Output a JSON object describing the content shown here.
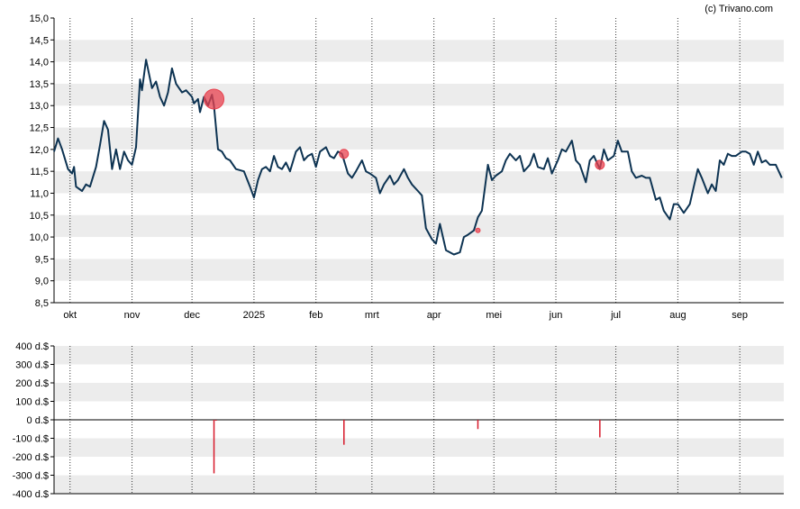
{
  "credit": "(c) Trivano.com",
  "colors": {
    "line": "#0d3352",
    "band": "#ececec",
    "marker": "#e8424f",
    "bar": "#d7192a",
    "axis": "#000000",
    "grid_dotted": "#333333"
  },
  "chart_data": [
    {
      "type": "line",
      "name": "price",
      "ylim": [
        8.5,
        15.0
      ],
      "y_ticks": [
        "15,0",
        "14,5",
        "14,0",
        "13,5",
        "13,0",
        "12,5",
        "12,0",
        "11,5",
        "11,0",
        "10,5",
        "10,0",
        "9,5",
        "9,0",
        "8,5"
      ],
      "y_tick_values": [
        15.0,
        14.5,
        14.0,
        13.5,
        13.0,
        12.5,
        12.0,
        11.5,
        11.0,
        10.5,
        10.0,
        9.5,
        9.0,
        8.5
      ],
      "x_start": "2024-09-23",
      "x_end": "2025-09-23",
      "x_tick_labels": [
        "okt",
        "nov",
        "dec",
        "2025",
        "feb",
        "mrt",
        "apr",
        "mei",
        "jun",
        "jul",
        "aug",
        "sep"
      ],
      "x_tick_dates": [
        "2024-10-01",
        "2024-11-01",
        "2024-12-01",
        "2025-01-01",
        "2025-02-01",
        "2025-03-01",
        "2025-04-01",
        "2025-05-01",
        "2025-06-01",
        "2025-07-01",
        "2025-08-01",
        "2025-09-01"
      ],
      "grid": "horizontal bands and dotted vertical lines at month ticks",
      "series": [
        {
          "points": [
            [
              "2024-09-23",
              11.95
            ],
            [
              "2024-09-25",
              12.25
            ],
            [
              "2024-09-27",
              12.0
            ],
            [
              "2024-09-30",
              11.55
            ],
            [
              "2024-10-02",
              11.45
            ],
            [
              "2024-10-03",
              11.6
            ],
            [
              "2024-10-04",
              11.15
            ],
            [
              "2024-10-07",
              11.05
            ],
            [
              "2024-10-09",
              11.2
            ],
            [
              "2024-10-11",
              11.15
            ],
            [
              "2024-10-14",
              11.6
            ],
            [
              "2024-10-16",
              12.1
            ],
            [
              "2024-10-18",
              12.65
            ],
            [
              "2024-10-20",
              12.45
            ],
            [
              "2024-10-22",
              11.55
            ],
            [
              "2024-10-24",
              12.0
            ],
            [
              "2024-10-26",
              11.55
            ],
            [
              "2024-10-28",
              11.95
            ],
            [
              "2024-10-30",
              11.75
            ],
            [
              "2024-11-01",
              11.65
            ],
            [
              "2024-11-03",
              12.05
            ],
            [
              "2024-11-05",
              13.6
            ],
            [
              "2024-11-06",
              13.35
            ],
            [
              "2024-11-08",
              14.05
            ],
            [
              "2024-11-11",
              13.4
            ],
            [
              "2024-11-13",
              13.55
            ],
            [
              "2024-11-15",
              13.2
            ],
            [
              "2024-11-17",
              13.0
            ],
            [
              "2024-11-19",
              13.3
            ],
            [
              "2024-11-21",
              13.85
            ],
            [
              "2024-11-23",
              13.5
            ],
            [
              "2024-11-26",
              13.3
            ],
            [
              "2024-11-28",
              13.35
            ],
            [
              "2024-12-01",
              13.2
            ],
            [
              "2024-12-02",
              13.05
            ],
            [
              "2024-12-04",
              13.15
            ],
            [
              "2024-12-05",
              12.85
            ],
            [
              "2024-12-07",
              13.2
            ],
            [
              "2024-12-09",
              13.0
            ],
            [
              "2024-12-11",
              13.25
            ],
            [
              "2024-12-12",
              13.0
            ],
            [
              "2024-12-14",
              12.0
            ],
            [
              "2024-12-16",
              11.95
            ],
            [
              "2024-12-18",
              11.8
            ],
            [
              "2024-12-20",
              11.75
            ],
            [
              "2024-12-23",
              11.55
            ],
            [
              "2024-12-27",
              11.5
            ],
            [
              "2024-12-30",
              11.15
            ],
            [
              "2025-01-01",
              10.9
            ],
            [
              "2025-01-03",
              11.3
            ],
            [
              "2025-01-05",
              11.55
            ],
            [
              "2025-01-07",
              11.6
            ],
            [
              "2025-01-09",
              11.5
            ],
            [
              "2025-01-11",
              11.85
            ],
            [
              "2025-01-13",
              11.6
            ],
            [
              "2025-01-15",
              11.55
            ],
            [
              "2025-01-17",
              11.7
            ],
            [
              "2025-01-19",
              11.5
            ],
            [
              "2025-01-22",
              11.95
            ],
            [
              "2025-01-24",
              12.05
            ],
            [
              "2025-01-26",
              11.75
            ],
            [
              "2025-01-28",
              11.85
            ],
            [
              "2025-01-30",
              11.9
            ],
            [
              "2025-02-01",
              11.6
            ],
            [
              "2025-02-03",
              11.95
            ],
            [
              "2025-02-06",
              12.05
            ],
            [
              "2025-02-08",
              11.85
            ],
            [
              "2025-02-10",
              11.8
            ],
            [
              "2025-02-12",
              11.95
            ],
            [
              "2025-02-14",
              11.9
            ],
            [
              "2025-02-17",
              11.45
            ],
            [
              "2025-02-19",
              11.35
            ],
            [
              "2025-02-21",
              11.5
            ],
            [
              "2025-02-24",
              11.75
            ],
            [
              "2025-02-26",
              11.5
            ],
            [
              "2025-02-28",
              11.45
            ],
            [
              "2025-03-03",
              11.35
            ],
            [
              "2025-03-05",
              11.0
            ],
            [
              "2025-03-07",
              11.2
            ],
            [
              "2025-03-10",
              11.4
            ],
            [
              "2025-03-12",
              11.2
            ],
            [
              "2025-03-14",
              11.3
            ],
            [
              "2025-03-17",
              11.55
            ],
            [
              "2025-03-19",
              11.35
            ],
            [
              "2025-03-21",
              11.2
            ],
            [
              "2025-03-24",
              11.05
            ],
            [
              "2025-03-26",
              10.95
            ],
            [
              "2025-03-28",
              10.2
            ],
            [
              "2025-03-31",
              9.95
            ],
            [
              "2025-04-02",
              9.85
            ],
            [
              "2025-04-04",
              10.3
            ],
            [
              "2025-04-07",
              9.7
            ],
            [
              "2025-04-09",
              9.65
            ],
            [
              "2025-04-11",
              9.6
            ],
            [
              "2025-04-14",
              9.65
            ],
            [
              "2025-04-16",
              10.0
            ],
            [
              "2025-04-18",
              10.05
            ],
            [
              "2025-04-21",
              10.15
            ],
            [
              "2025-04-23",
              10.45
            ],
            [
              "2025-04-25",
              10.6
            ],
            [
              "2025-04-28",
              11.65
            ],
            [
              "2025-04-30",
              11.3
            ],
            [
              "2025-05-02",
              11.4
            ],
            [
              "2025-05-05",
              11.5
            ],
            [
              "2025-05-07",
              11.75
            ],
            [
              "2025-05-09",
              11.9
            ],
            [
              "2025-05-12",
              11.75
            ],
            [
              "2025-05-14",
              11.85
            ],
            [
              "2025-05-16",
              11.5
            ],
            [
              "2025-05-19",
              11.65
            ],
            [
              "2025-05-21",
              11.9
            ],
            [
              "2025-05-23",
              11.6
            ],
            [
              "2025-05-26",
              11.55
            ],
            [
              "2025-05-28",
              11.8
            ],
            [
              "2025-05-30",
              11.45
            ],
            [
              "2025-06-02",
              11.75
            ],
            [
              "2025-06-04",
              12.0
            ],
            [
              "2025-06-06",
              11.95
            ],
            [
              "2025-06-09",
              12.2
            ],
            [
              "2025-06-11",
              11.75
            ],
            [
              "2025-06-13",
              11.65
            ],
            [
              "2025-06-16",
              11.25
            ],
            [
              "2025-06-18",
              11.75
            ],
            [
              "2025-06-20",
              11.85
            ],
            [
              "2025-06-23",
              11.55
            ],
            [
              "2025-06-25",
              12.0
            ],
            [
              "2025-06-27",
              11.75
            ],
            [
              "2025-06-30",
              11.85
            ],
            [
              "2025-07-02",
              12.2
            ],
            [
              "2025-07-04",
              11.95
            ],
            [
              "2025-07-07",
              11.95
            ],
            [
              "2025-07-09",
              11.5
            ],
            [
              "2025-07-11",
              11.35
            ],
            [
              "2025-07-14",
              11.4
            ],
            [
              "2025-07-16",
              11.35
            ],
            [
              "2025-07-18",
              11.35
            ],
            [
              "2025-07-21",
              10.85
            ],
            [
              "2025-07-23",
              10.9
            ],
            [
              "2025-07-25",
              10.6
            ],
            [
              "2025-07-28",
              10.4
            ],
            [
              "2025-07-30",
              10.75
            ],
            [
              "2025-08-01",
              10.75
            ],
            [
              "2025-08-04",
              10.55
            ],
            [
              "2025-08-07",
              10.75
            ],
            [
              "2025-08-09",
              11.15
            ],
            [
              "2025-08-11",
              11.55
            ],
            [
              "2025-08-13",
              11.35
            ],
            [
              "2025-08-16",
              11.0
            ],
            [
              "2025-08-18",
              11.2
            ],
            [
              "2025-08-20",
              11.05
            ],
            [
              "2025-08-22",
              11.75
            ],
            [
              "2025-08-24",
              11.65
            ],
            [
              "2025-08-26",
              11.9
            ],
            [
              "2025-08-28",
              11.85
            ],
            [
              "2025-08-30",
              11.85
            ],
            [
              "2025-09-02",
              11.95
            ],
            [
              "2025-09-04",
              11.95
            ],
            [
              "2025-09-06",
              11.9
            ],
            [
              "2025-09-08",
              11.65
            ],
            [
              "2025-09-10",
              11.95
            ],
            [
              "2025-09-12",
              11.7
            ],
            [
              "2025-09-14",
              11.75
            ],
            [
              "2025-09-16",
              11.65
            ],
            [
              "2025-09-19",
              11.65
            ],
            [
              "2025-09-22",
              11.35
            ]
          ]
        }
      ],
      "markers": [
        {
          "date": "2024-12-12",
          "value": 13.15,
          "size": "large"
        },
        {
          "date": "2025-02-15",
          "value": 11.9,
          "size": "small"
        },
        {
          "date": "2025-04-23",
          "value": 10.15,
          "size": "tiny"
        },
        {
          "date": "2025-06-23",
          "value": 11.65,
          "size": "small"
        }
      ]
    },
    {
      "type": "bar",
      "name": "transactions",
      "ylim": [
        -400,
        400
      ],
      "y_ticks": [
        "400 d.$",
        "300 d.$",
        "200 d.$",
        "100 d.$",
        "0 d.$",
        "-100 d.$",
        "-200 d.$",
        "-300 d.$",
        "-400 d.$"
      ],
      "y_tick_values": [
        400,
        300,
        200,
        100,
        0,
        -100,
        -200,
        -300,
        -400
      ],
      "bars": [
        {
          "date": "2024-12-12",
          "value": -290
        },
        {
          "date": "2024-12-13",
          "value": -5
        },
        {
          "date": "2025-02-15",
          "value": -135
        },
        {
          "date": "2025-04-23",
          "value": -50
        },
        {
          "date": "2025-06-23",
          "value": -95
        }
      ]
    }
  ]
}
